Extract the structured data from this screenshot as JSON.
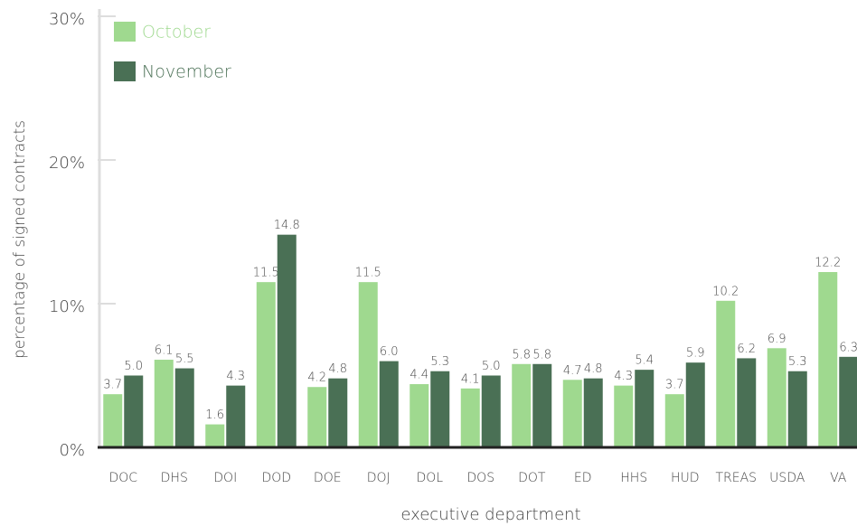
{
  "chart_data": {
    "type": "bar",
    "x_label": "executive department",
    "y_label": "percentage of signed contracts",
    "categories": [
      "DOC",
      "DHS",
      "DOI",
      "DOD",
      "DOE",
      "DOJ",
      "DOL",
      "DOS",
      "DOT",
      "ED",
      "HHS",
      "HUD",
      "TREAS",
      "USDA",
      "VA"
    ],
    "series": [
      {
        "name": "October",
        "color": "#9fd98f",
        "values": [
          3.7,
          6.1,
          1.6,
          11.5,
          4.2,
          11.5,
          4.4,
          4.1,
          5.8,
          4.7,
          4.3,
          3.7,
          10.2,
          6.9,
          12.2
        ]
      },
      {
        "name": "November",
        "color": "#4a7055",
        "values": [
          5,
          5.5,
          4.3,
          14.8,
          4.8,
          6,
          5.3,
          5,
          5.8,
          4.8,
          5.4,
          5.9,
          6.2,
          5.3,
          6.3
        ],
        "value_labels": [
          "5.0",
          "5.5",
          "4.3",
          "14.8",
          "4.8",
          "6.0",
          "5.3",
          "5.0",
          "5.8",
          "4.8",
          "5.4",
          "5.9",
          "6.2",
          "5.3",
          "6.3"
        ]
      }
    ],
    "ylim": [
      0,
      30
    ],
    "yticks": [
      {
        "value": 0,
        "label": "0%"
      },
      {
        "value": 10,
        "label": "10%"
      },
      {
        "value": 20,
        "label": "20%"
      },
      {
        "value": 30,
        "label": "30%"
      }
    ],
    "legend": "upper left"
  }
}
